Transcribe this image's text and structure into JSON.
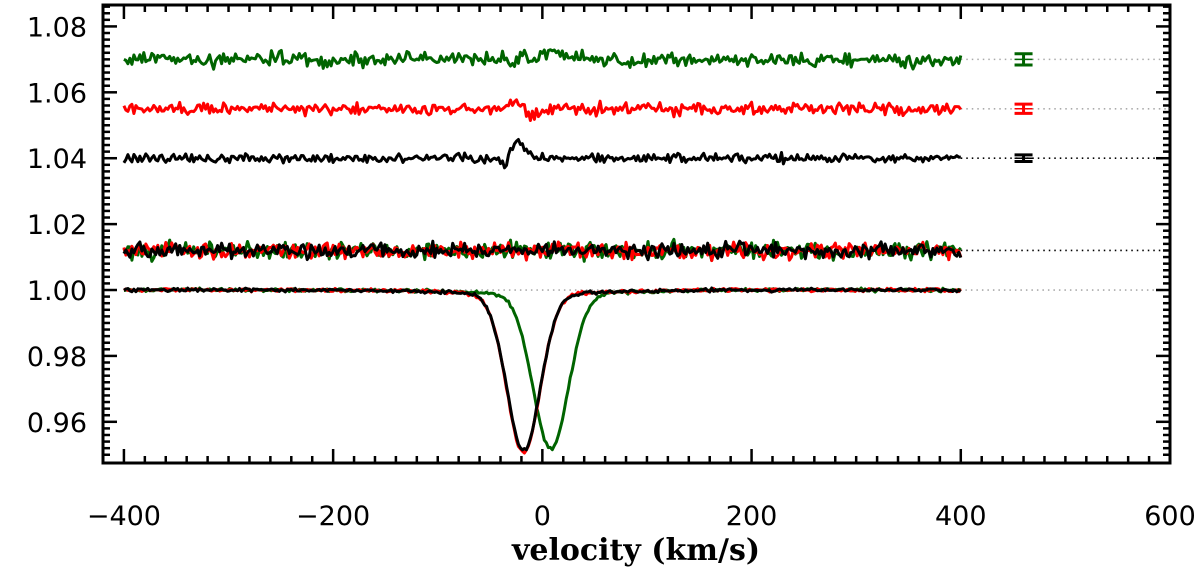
{
  "chart_data": {
    "type": "line",
    "title": "",
    "xlabel": "velocity (km/s)",
    "ylabel": "",
    "xlim": [
      -420,
      600
    ],
    "ylim": [
      0.9475,
      1.0865
    ],
    "x_ticks": [
      -400,
      -200,
      0,
      200,
      400,
      600
    ],
    "x_tick_labels": [
      "−400",
      "−200",
      "0",
      "200",
      "400",
      "600"
    ],
    "y_ticks": [
      0.96,
      0.98,
      1.0,
      1.02,
      1.04,
      1.06,
      1.08
    ],
    "y_tick_labels": [
      "0.96",
      "0.98",
      "1.00",
      "1.02",
      "1.04",
      "1.06",
      "1.08"
    ],
    "data_x_range": [
      -400,
      400
    ],
    "colors": {
      "green": "#006400",
      "red": "#ff0000",
      "black": "#000000",
      "reference": "#aaaaaa"
    },
    "stokes_i_profiles": [
      {
        "name": "Stokes I (green)",
        "color": "#006400",
        "continuum": 1.0,
        "center": 8,
        "depth": 0.047,
        "width": 17
      },
      {
        "name": "Stokes I (red)",
        "color": "#ff0000",
        "continuum": 1.0,
        "center": -18,
        "depth": 0.048,
        "width": 16
      },
      {
        "name": "Stokes I (black)",
        "color": "#000000",
        "continuum": 1.0,
        "center": -18,
        "depth": 0.0475,
        "width": 16
      }
    ],
    "null_profiles": [
      {
        "name": "Null (green)",
        "color": "#006400",
        "offset": 1.012,
        "noise": 0.0013
      },
      {
        "name": "Null (red)",
        "color": "#ff0000",
        "offset": 1.012,
        "noise": 0.0012
      },
      {
        "name": "Null (black)",
        "color": "#000000",
        "offset": 1.012,
        "noise": 0.0011
      }
    ],
    "stokes_v_profiles": [
      {
        "name": "Stokes V (black)",
        "color": "#000000",
        "offset": 1.04,
        "noise": 0.0007,
        "signature": [
          {
            "center": -25,
            "amp": 0.006,
            "width": 6
          },
          {
            "center": -35,
            "amp": -0.003,
            "width": 4
          },
          {
            "center": -12,
            "amp": 0.001,
            "width": 5
          }
        ]
      },
      {
        "name": "Stokes V (red)",
        "color": "#ff0000",
        "offset": 1.055,
        "noise": 0.0009,
        "signature": [
          {
            "center": -25,
            "amp": 0.002,
            "width": 6
          },
          {
            "center": -10,
            "amp": -0.003,
            "width": 5
          }
        ]
      },
      {
        "name": "Stokes V (green)",
        "color": "#006400",
        "offset": 1.07,
        "noise": 0.0011,
        "signature": [
          {
            "center": 8,
            "amp": 0.003,
            "width": 8
          }
        ]
      }
    ],
    "reference_lines": [
      {
        "y": 1.0,
        "color": "#aaaaaa",
        "from": -400,
        "to": 600
      },
      {
        "y": 1.012,
        "color": "#000000",
        "from": 400,
        "to": 600
      },
      {
        "y": 1.04,
        "color": "#000000",
        "from": 400,
        "to": 600
      },
      {
        "y": 1.055,
        "color": "#aaaaaa",
        "from": 400,
        "to": 600
      },
      {
        "y": 1.07,
        "color": "#aaaaaa",
        "from": 400,
        "to": 600
      }
    ],
    "error_bars": [
      {
        "color": "#006400",
        "x": 460,
        "y": 1.07,
        "err": 0.0017
      },
      {
        "color": "#ff0000",
        "x": 460,
        "y": 1.055,
        "err": 0.0014
      },
      {
        "color": "#000000",
        "x": 460,
        "y": 1.04,
        "err": 0.001
      }
    ]
  }
}
